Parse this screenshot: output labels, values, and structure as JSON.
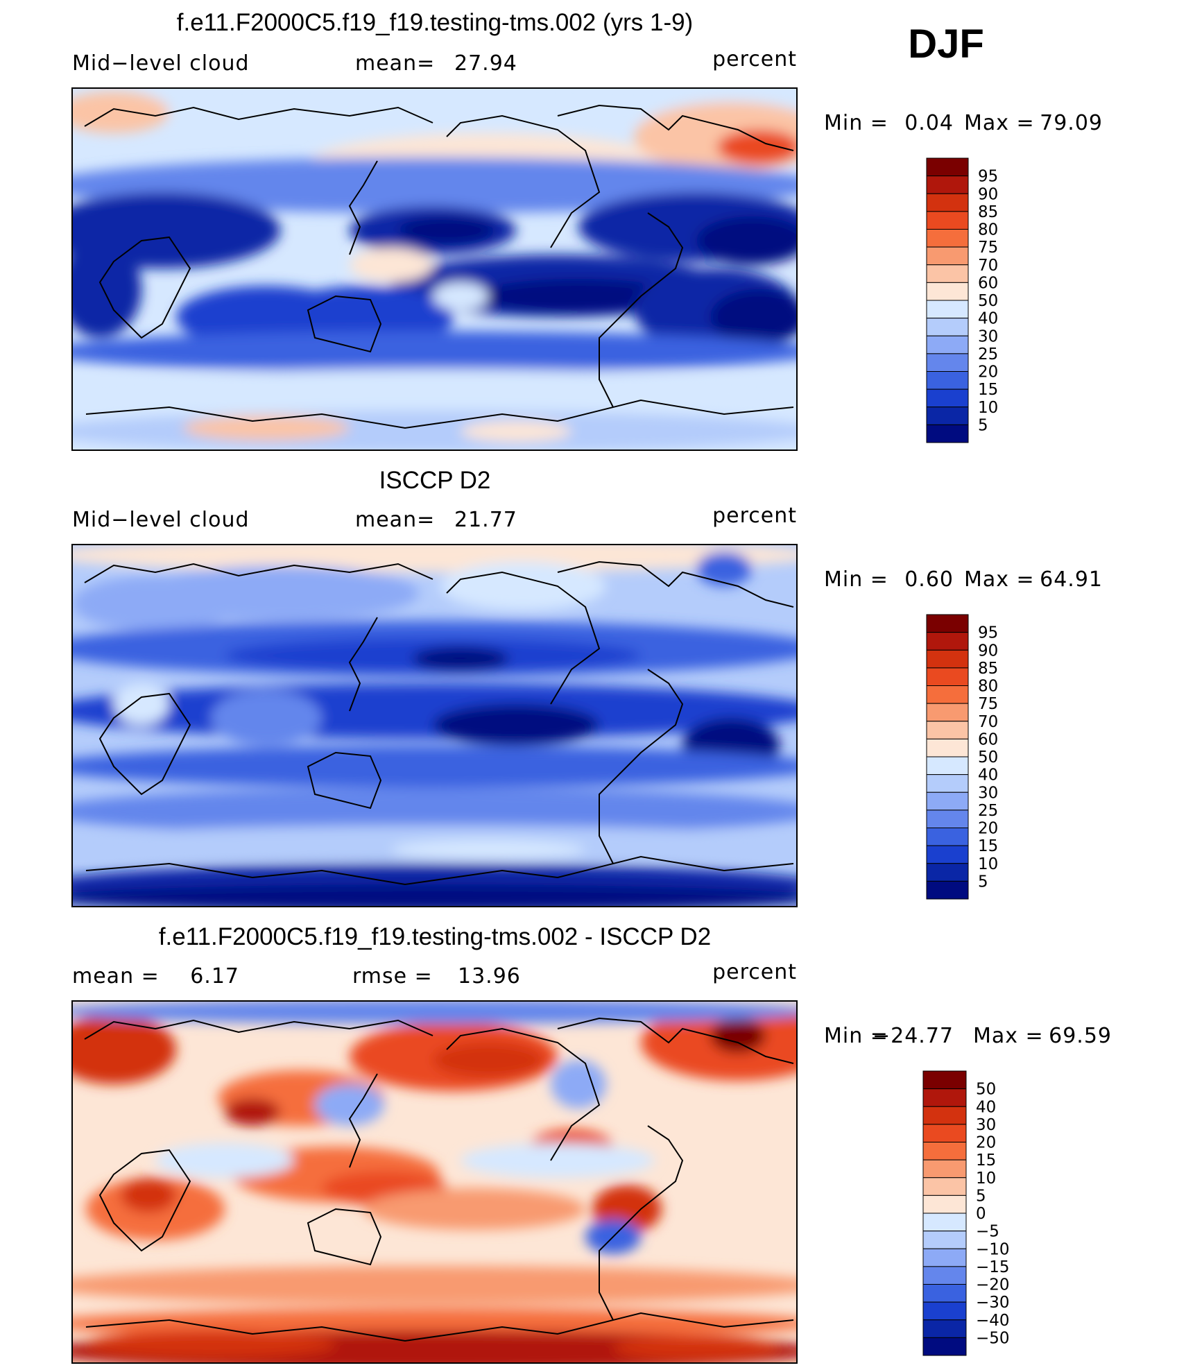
{
  "season_label": "DJF",
  "panels": [
    {
      "title": "f.e11.F2000C5.f19_f19.testing-tms.002 (yrs 1-9)",
      "left_label": "Mid−level cloud",
      "mid_label": "mean=",
      "mid_value": "27.94",
      "right_label": "percent",
      "minmax": {
        "min_label": "Min =",
        "min_value": "0.04",
        "max_label": "Max =",
        "max_value": "79.09"
      },
      "colorbar": {
        "levels": [
          "95",
          "90",
          "85",
          "80",
          "75",
          "70",
          "60",
          "50",
          "40",
          "30",
          "25",
          "20",
          "15",
          "10",
          "5"
        ],
        "colors": [
          "#7a0000",
          "#b0170c",
          "#d3320f",
          "#ea4a20",
          "#f56e3c",
          "#f89a70",
          "#fbc4a6",
          "#fde6d6",
          "#d6e8ff",
          "#b4ccfb",
          "#8daaf6",
          "#6486ec",
          "#3a62e0",
          "#1a40cf",
          "#0a26a6",
          "#000b80"
        ]
      }
    },
    {
      "title": "ISCCP D2",
      "left_label": "Mid−level cloud",
      "mid_label": "mean=",
      "mid_value": "21.77",
      "right_label": "percent",
      "minmax": {
        "min_label": "Min =",
        "min_value": "0.60",
        "max_label": "Max =",
        "max_value": "64.91"
      },
      "colorbar": {
        "levels": [
          "95",
          "90",
          "85",
          "80",
          "75",
          "70",
          "60",
          "50",
          "40",
          "30",
          "25",
          "20",
          "15",
          "10",
          "5"
        ],
        "colors": [
          "#7a0000",
          "#b0170c",
          "#d3320f",
          "#ea4a20",
          "#f56e3c",
          "#f89a70",
          "#fbc4a6",
          "#fde6d6",
          "#d6e8ff",
          "#b4ccfb",
          "#8daaf6",
          "#6486ec",
          "#3a62e0",
          "#1a40cf",
          "#0a26a6",
          "#000b80"
        ]
      }
    },
    {
      "title": "f.e11.F2000C5.f19_f19.testing-tms.002 - ISCCP D2",
      "left_label": "mean =",
      "left_value": "6.17",
      "mid_label": "rmse =",
      "mid_value": "13.96",
      "right_label": "percent",
      "minmax": {
        "min_label": "Min =",
        "min_value": "−24.77",
        "max_label": "Max =",
        "max_value": "69.59"
      },
      "colorbar": {
        "levels": [
          "50",
          "40",
          "30",
          "20",
          "15",
          "10",
          "5",
          "0",
          "−5",
          "−10",
          "−15",
          "−20",
          "−30",
          "−40",
          "−50"
        ],
        "colors": [
          "#7a0000",
          "#b0170c",
          "#d3320f",
          "#ea4a20",
          "#f56e3c",
          "#f89a70",
          "#fbc4a6",
          "#fde6d6",
          "#d6e8ff",
          "#b4ccfb",
          "#8daaf6",
          "#6486ec",
          "#3a62e0",
          "#1a40cf",
          "#0a26a6",
          "#000b80"
        ]
      }
    }
  ],
  "chart_data": [
    {
      "type": "heatmap",
      "title": "f.e11.F2000C5.f19_f19.testing-tms.002 (yrs 1-9)",
      "variable": "Mid−level cloud",
      "units": "percent",
      "mean": 27.94,
      "min": 0.04,
      "max": 79.09,
      "contour_levels": [
        5,
        10,
        15,
        20,
        25,
        30,
        40,
        50,
        60,
        70,
        75,
        80,
        85,
        90,
        95
      ]
    },
    {
      "type": "heatmap",
      "title": "ISCCP D2",
      "variable": "Mid−level cloud",
      "units": "percent",
      "mean": 21.77,
      "min": 0.6,
      "max": 64.91,
      "contour_levels": [
        5,
        10,
        15,
        20,
        25,
        30,
        40,
        50,
        60,
        70,
        75,
        80,
        85,
        90,
        95
      ]
    },
    {
      "type": "heatmap",
      "title": "f.e11.F2000C5.f19_f19.testing-tms.002 - ISCCP D2",
      "units": "percent",
      "mean": 6.17,
      "rmse": 13.96,
      "min": -24.77,
      "max": 69.59,
      "contour_levels": [
        -50,
        -40,
        -30,
        -20,
        -15,
        -10,
        -5,
        0,
        5,
        10,
        15,
        20,
        30,
        40,
        50
      ]
    }
  ]
}
